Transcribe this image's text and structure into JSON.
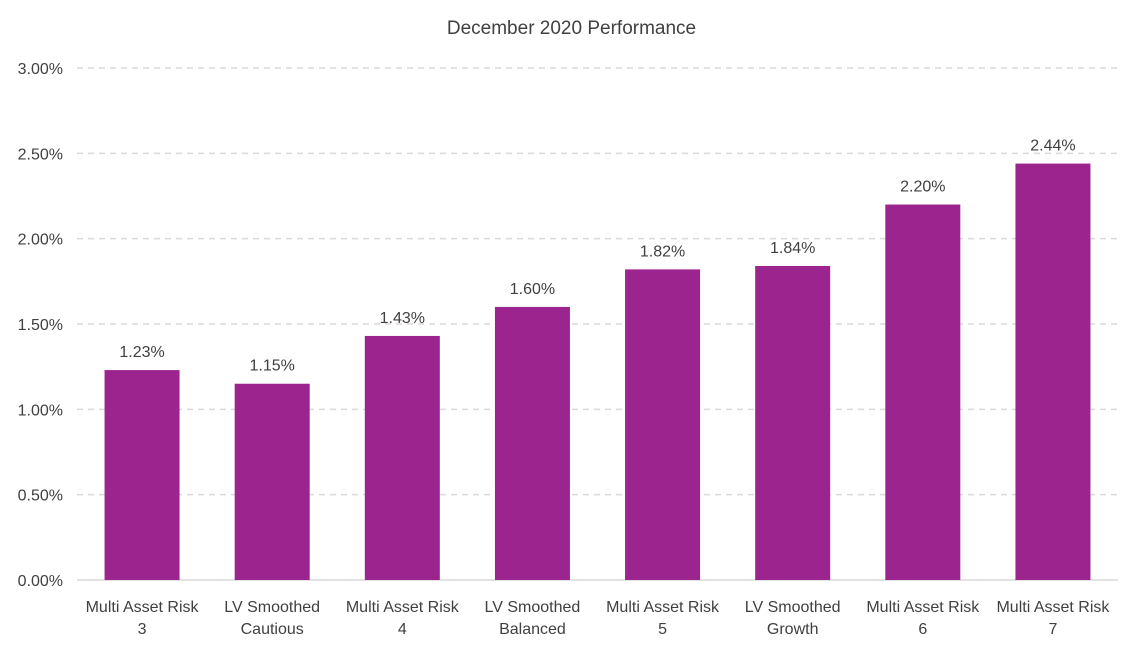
{
  "chart_data": {
    "type": "bar",
    "title": "December 2020 Performance",
    "xlabel": "",
    "ylabel": "",
    "categories": [
      [
        "Multi Asset Risk",
        "3"
      ],
      [
        "LV Smoothed",
        "Cautious"
      ],
      [
        "Multi Asset Risk",
        "4"
      ],
      [
        "LV Smoothed",
        "Balanced"
      ],
      [
        "Multi Asset Risk",
        "5"
      ],
      [
        "LV Smoothed",
        "Growth"
      ],
      [
        "Multi Asset Risk",
        "6"
      ],
      [
        "Multi Asset Risk",
        "7"
      ]
    ],
    "values": [
      1.23,
      1.15,
      1.43,
      1.6,
      1.82,
      1.84,
      2.2,
      2.44
    ],
    "value_labels": [
      "1.23%",
      "1.15%",
      "1.43%",
      "1.60%",
      "1.82%",
      "1.84%",
      "2.20%",
      "2.44%"
    ],
    "ylim": [
      0,
      3
    ],
    "yticks": [
      0,
      0.5,
      1,
      1.5,
      2,
      2.5,
      3
    ],
    "ytick_labels": [
      "0.00%",
      "0.50%",
      "1.00%",
      "1.50%",
      "2.00%",
      "2.50%",
      "3.00%"
    ],
    "grid": true,
    "legend": "none",
    "bar_color": "#9B248F",
    "grid_color": "#D9D9D9",
    "text_color": "#404040"
  }
}
